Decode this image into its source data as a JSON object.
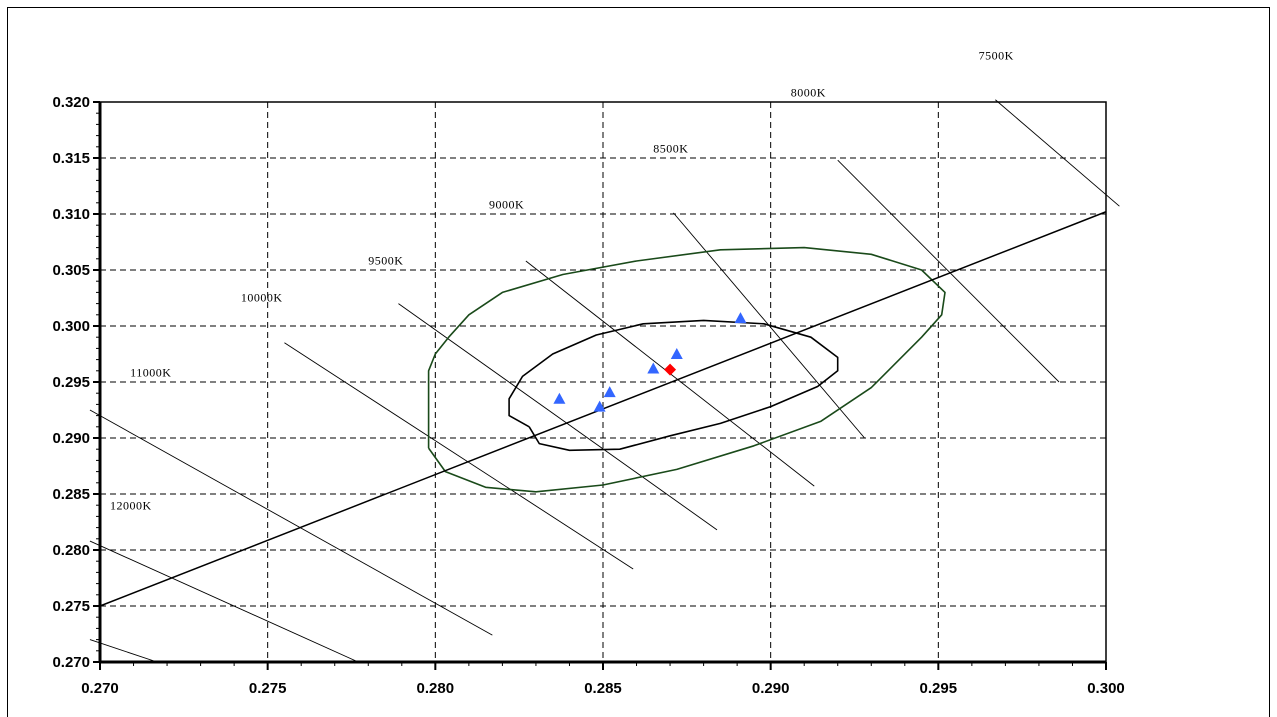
{
  "chart_data": {
    "type": "scatter",
    "title": "",
    "xlabel": "",
    "ylabel": "",
    "xlim": [
      0.27,
      0.3
    ],
    "ylim": [
      0.27,
      0.32
    ],
    "grid": true,
    "x_ticks": [
      "0.270",
      "0.275",
      "0.280",
      "0.285",
      "0.290",
      "0.295",
      "0.300"
    ],
    "y_ticks": [
      "0.320",
      "0.315",
      "0.310",
      "0.305",
      "0.300",
      "0.295",
      "0.290",
      "0.285",
      "0.280",
      "0.275",
      "0.270"
    ],
    "planckian_locus": [
      [
        0.27,
        0.275
      ],
      [
        0.3,
        0.3102
      ]
    ],
    "isotemperature_lines": [
      {
        "label": "7500K",
        "from": [
          0.2967,
          0.3202
        ],
        "to": [
          0.3004,
          0.3107
        ],
        "label_at": [
          0.2962,
          0.3238
        ]
      },
      {
        "label": "8000K",
        "from": [
          0.292,
          0.3148
        ],
        "to": [
          0.2986,
          0.295
        ],
        "label_at": [
          0.2906,
          0.3205
        ]
      },
      {
        "label": "8500K",
        "from": [
          0.2871,
          0.3101
        ],
        "to": [
          0.2928,
          0.29
        ],
        "label_at": [
          0.2865,
          0.3155
        ]
      },
      {
        "label": "9000K",
        "from": [
          0.2827,
          0.3058
        ],
        "to": [
          0.2913,
          0.2857
        ],
        "label_at": [
          0.2816,
          0.3105
        ]
      },
      {
        "label": "9500K",
        "from": [
          0.2789,
          0.302
        ],
        "to": [
          0.2884,
          0.2818
        ],
        "label_at": [
          0.278,
          0.3055
        ]
      },
      {
        "label": "10000K",
        "from": [
          0.2755,
          0.2985
        ],
        "to": [
          0.2859,
          0.2783
        ],
        "label_at": [
          0.2742,
          0.3022
        ]
      },
      {
        "label": "11000K",
        "from": [
          0.2697,
          0.2925
        ],
        "to": [
          0.2817,
          0.2724
        ],
        "label_at": [
          0.2709,
          0.2955
        ]
      },
      {
        "label": "12000K",
        "from": [
          0.2697,
          0.2808
        ],
        "to": [
          0.2777,
          0.27
        ],
        "label_at": [
          0.2703,
          0.2836
        ]
      },
      {
        "label": "",
        "from": [
          0.2697,
          0.272
        ],
        "to": [
          0.2717,
          0.27
        ],
        "label_at": null
      }
    ],
    "ellipses": [
      {
        "name": "inner",
        "color": "#000000",
        "points": [
          [
            0.2828,
            0.291
          ],
          [
            0.2831,
            0.2895
          ],
          [
            0.284,
            0.2889
          ],
          [
            0.2855,
            0.289
          ],
          [
            0.287,
            0.2902
          ],
          [
            0.2885,
            0.2913
          ],
          [
            0.29,
            0.2928
          ],
          [
            0.2914,
            0.2946
          ],
          [
            0.292,
            0.296
          ],
          [
            0.292,
            0.2972
          ],
          [
            0.2912,
            0.299
          ],
          [
            0.2898,
            0.3002
          ],
          [
            0.288,
            0.3005
          ],
          [
            0.2862,
            0.3002
          ],
          [
            0.2848,
            0.2992
          ],
          [
            0.2835,
            0.2975
          ],
          [
            0.2826,
            0.2955
          ],
          [
            0.2822,
            0.2935
          ],
          [
            0.2822,
            0.292
          ],
          [
            0.2828,
            0.291
          ]
        ]
      },
      {
        "name": "outer",
        "color": "#1a4a1a",
        "points": [
          [
            0.2798,
            0.2891
          ],
          [
            0.2803,
            0.287
          ],
          [
            0.2815,
            0.2856
          ],
          [
            0.283,
            0.2852
          ],
          [
            0.285,
            0.2858
          ],
          [
            0.2872,
            0.2872
          ],
          [
            0.2895,
            0.2893
          ],
          [
            0.2915,
            0.2915
          ],
          [
            0.293,
            0.2945
          ],
          [
            0.2945,
            0.299
          ],
          [
            0.2951,
            0.301
          ],
          [
            0.2952,
            0.303
          ],
          [
            0.2945,
            0.305
          ],
          [
            0.293,
            0.3064
          ],
          [
            0.291,
            0.307
          ],
          [
            0.2885,
            0.3068
          ],
          [
            0.286,
            0.3058
          ],
          [
            0.2838,
            0.3046
          ],
          [
            0.282,
            0.303
          ],
          [
            0.281,
            0.301
          ],
          [
            0.2804,
            0.299
          ],
          [
            0.28,
            0.2975
          ],
          [
            0.2798,
            0.296
          ],
          [
            0.2798,
            0.2891
          ]
        ]
      }
    ],
    "measured_points": {
      "marker": "triangle",
      "color": "#3366ff",
      "points": [
        [
          0.2837,
          0.2935
        ],
        [
          0.2849,
          0.2928
        ],
        [
          0.2852,
          0.2941
        ],
        [
          0.2865,
          0.2962
        ],
        [
          0.2872,
          0.2975
        ],
        [
          0.2891,
          0.3007
        ]
      ]
    },
    "reference_point": {
      "marker": "diamond",
      "color": "#ff0000",
      "point": [
        0.287,
        0.2961
      ]
    }
  }
}
